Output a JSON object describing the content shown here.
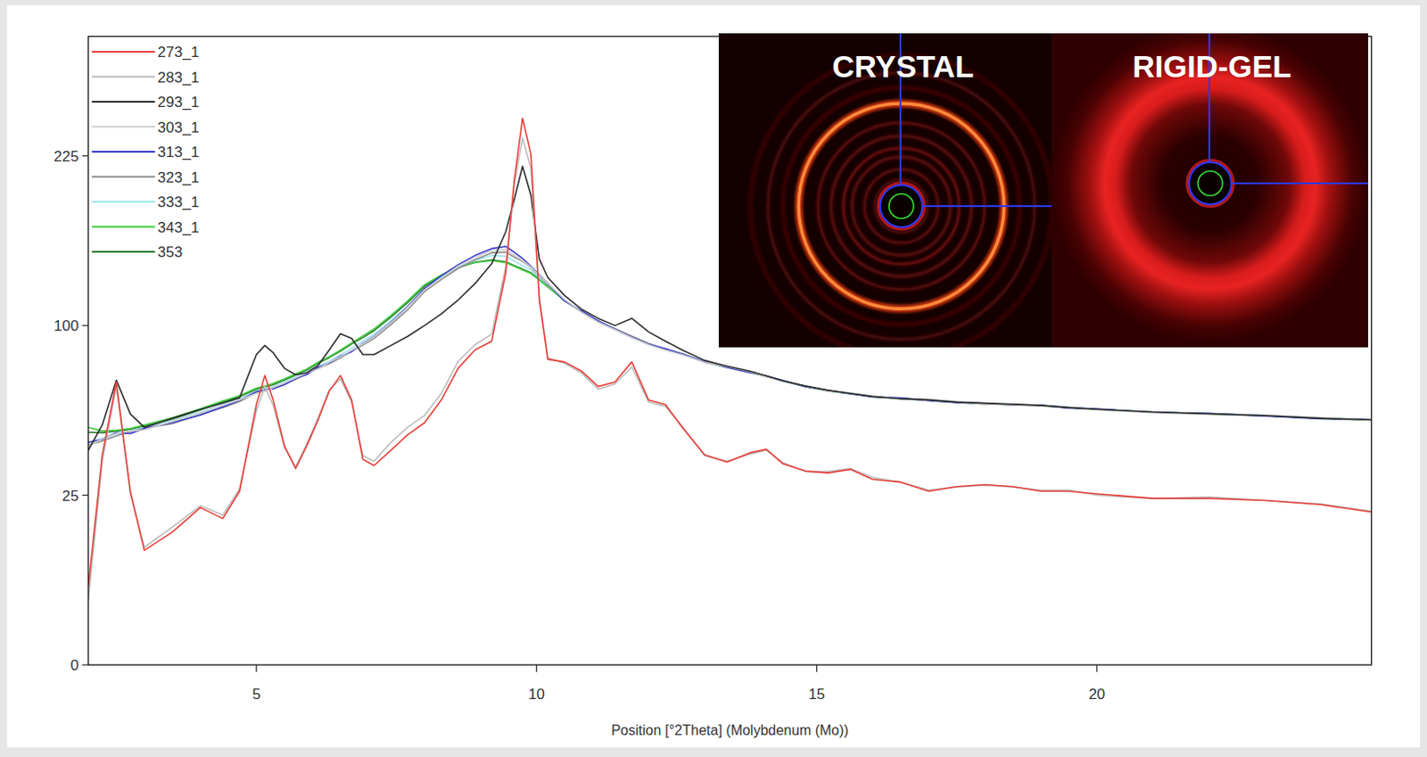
{
  "chart_data": {
    "type": "line",
    "x_label": "Position [°2Theta] (Molybdenum (Mo))",
    "annotations": [
      "CRYSTAL",
      "RIGID-GEL"
    ],
    "legend": "upper left",
    "grid": false,
    "xlim": [
      2.0,
      24.9
    ],
    "xticks": [
      5,
      10,
      15,
      20
    ],
    "ylim": [
      0,
      343
    ],
    "yticks": [
      0,
      25,
      100,
      225
    ],
    "x": [
      2.0,
      2.25,
      2.5,
      2.75,
      3.0,
      3.5,
      4.0,
      4.4,
      4.7,
      5.0,
      5.15,
      5.3,
      5.5,
      5.7,
      5.9,
      6.1,
      6.3,
      6.5,
      6.7,
      6.9,
      7.1,
      7.4,
      7.7,
      8.0,
      8.3,
      8.6,
      8.9,
      9.2,
      9.45,
      9.6,
      9.75,
      9.9,
      10.05,
      10.2,
      10.5,
      10.8,
      11.1,
      11.4,
      11.7,
      12.0,
      12.3,
      12.6,
      13.0,
      13.4,
      13.8,
      14.1,
      14.4,
      14.8,
      15.2,
      15.6,
      16.0,
      16.5,
      17.0,
      17.5,
      18.0,
      18.5,
      19.0,
      19.5,
      20.0,
      21.0,
      22.0,
      23.0,
      24.0,
      24.9
    ],
    "series": [
      {
        "name": "273_1",
        "color": "#e8403a",
        "values": [
          5.3,
          38.3,
          69.5,
          26.2,
          11.4,
          15.3,
          21.5,
          18.6,
          26.2,
          58.8,
          72.7,
          60.9,
          41.7,
          33.5,
          41.7,
          52.0,
          65.1,
          72.7,
          60.9,
          36.7,
          34.5,
          40.0,
          46.0,
          50.9,
          60.9,
          76.4,
          86.1,
          91.0,
          133.5,
          202.7,
          259.6,
          226.2,
          115.6,
          81.1,
          79.7,
          75.0,
          67.3,
          69.5,
          79.7,
          60.9,
          58.8,
          49.0,
          38.3,
          35.7,
          39.0,
          40.4,
          35.1,
          32.6,
          32.0,
          33.2,
          29.9,
          29.0,
          26.2,
          27.6,
          28.2,
          27.6,
          26.2,
          26.2,
          25.4,
          24.1,
          24.1,
          23.5,
          22.3,
          20.3
        ]
      },
      {
        "name": "283_1",
        "color": "#bdbdbd",
        "values": [
          3.6,
          36.0,
          67.3,
          25.5,
          12.0,
          16.5,
          22.0,
          19.5,
          27.0,
          56.0,
          67.3,
          58.5,
          41.0,
          34.0,
          42.5,
          53.0,
          65.5,
          71.0,
          60.0,
          38.0,
          36.0,
          43.0,
          49.0,
          54.0,
          64.0,
          80.0,
          89.0,
          95.0,
          138.0,
          200.0,
          241.0,
          214.0,
          118.0,
          82.0,
          79.0,
          74.0,
          66.0,
          68.5,
          77.0,
          60.0,
          58.0,
          49.5,
          38.0,
          36.0,
          38.5,
          40.0,
          35.5,
          32.5,
          32.5,
          33.5,
          30.5,
          29.0,
          26.5,
          27.5,
          28.0,
          27.5,
          26.5,
          26.5,
          25.0,
          24.0,
          24.5,
          23.5,
          22.5,
          20.5
        ]
      },
      {
        "name": "293_1",
        "color": "#2e2e2e",
        "values": [
          40.0,
          50.0,
          70.4,
          54.7,
          49.0,
          52.8,
          56.7,
          59.5,
          62.0,
          83.6,
          88.6,
          84.6,
          76.4,
          73.1,
          74.1,
          77.8,
          86.1,
          95.2,
          92.6,
          83.6,
          83.6,
          88.6,
          93.7,
          100.0,
          107.0,
          115.6,
          126.2,
          139.8,
          162.9,
          187.7,
          215.9,
          191.4,
          143.0,
          130.4,
          118.5,
          109.9,
          104.3,
          100.0,
          104.3,
          96.3,
          91.0,
          86.1,
          80.5,
          77.5,
          75.0,
          72.5,
          70.0,
          67.5,
          65.5,
          64.0,
          62.5,
          61.5,
          61.0,
          60.0,
          59.5,
          59.0,
          58.5,
          57.5,
          56.8,
          55.5,
          54.8,
          54.0,
          52.8,
          52.2
        ]
      },
      {
        "name": "303_1",
        "color": "#cfcfcf",
        "values": [
          41.5,
          44.5,
          46.5,
          47.5,
          48.0,
          51.5,
          55.0,
          58.5,
          61.0,
          64.0,
          65.0,
          66.8,
          69.0,
          71.5,
          74.0,
          76.0,
          79.5,
          82.5,
          86.0,
          89.5,
          93.5,
          101.5,
          111.0,
          122.0,
          130.0,
          138.0,
          144.0,
          149.0,
          150.0,
          146.0,
          142.0,
          137.5,
          131.5,
          126.5,
          116.0,
          108.0,
          102.0,
          97.5,
          93.0,
          89.0,
          86.0,
          83.5,
          79.5,
          77.2,
          74.8,
          72.0,
          69.8,
          67.5,
          65.0,
          64.2,
          62.8,
          61.5,
          61.0,
          60.2,
          59.0,
          58.6,
          58.2,
          57.6,
          56.5,
          55.2,
          54.5,
          54.2,
          53.0,
          51.8
        ]
      },
      {
        "name": "313_1",
        "color": "#3a3ad0",
        "values": [
          43.0,
          44.2,
          46.8,
          46.5,
          48.5,
          51.0,
          54.2,
          57.8,
          60.8,
          64.8,
          65.8,
          66.2,
          68.2,
          71.2,
          73.2,
          76.8,
          79.2,
          82.8,
          85.2,
          89.8,
          93.8,
          101.8,
          111.5,
          123.0,
          131.5,
          139.0,
          145.5,
          150.5,
          152.0,
          148.0,
          143.5,
          138.0,
          132.0,
          126.5,
          115.0,
          108.8,
          102.8,
          97.8,
          93.2,
          89.2,
          86.8,
          83.8,
          79.9,
          76.8,
          74.2,
          72.5,
          70.2,
          67.2,
          65.4,
          63.8,
          62.4,
          61.9,
          60.7,
          59.8,
          59.4,
          58.6,
          58.5,
          57.3,
          56.9,
          55.3,
          54.9,
          53.8,
          52.6,
          52.2
        ]
      },
      {
        "name": "323_1",
        "color": "#8c8c8c",
        "values": [
          42.0,
          43.5,
          45.5,
          47.2,
          48.6,
          50.5,
          54.5,
          57.5,
          60.2,
          64.5,
          65.2,
          66.6,
          68.4,
          70.8,
          73.8,
          76.2,
          78.8,
          81.8,
          85.8,
          88.8,
          92.5,
          100.5,
          109.5,
          121.0,
          129.0,
          136.5,
          142.5,
          147.5,
          148.0,
          144.5,
          141.5,
          137.2,
          131.2,
          125.8,
          115.4,
          108.2,
          102.2,
          98.2,
          93.8,
          89.8,
          86.2,
          84.2,
          79.4,
          77.4,
          74.4,
          72.2,
          69.9,
          67.6,
          65.3,
          64.1,
          62.7,
          61.6,
          61.1,
          59.9,
          59.1,
          58.9,
          58.3,
          57.4,
          56.6,
          55.6,
          54.6,
          53.9,
          52.9,
          51.9
        ]
      },
      {
        "name": "333_1",
        "color": "#9fe6ee",
        "values": [
          42.8,
          44.6,
          46.2,
          47.6,
          49.0,
          51.8,
          55.5,
          58.8,
          61.5,
          65.0,
          66.0,
          67.2,
          69.5,
          72.0,
          74.5,
          77.5,
          80.0,
          83.5,
          87.0,
          91.0,
          95.0,
          103.0,
          112.0,
          123.0,
          130.5,
          137.5,
          142.0,
          145.5,
          145.0,
          141.5,
          138.5,
          135.5,
          130.0,
          125.5,
          115.8,
          108.6,
          102.6,
          98.1,
          93.6,
          89.6,
          86.6,
          84.1,
          79.8,
          77.1,
          74.6,
          72.4,
          70.1,
          67.5,
          65.3,
          64.1,
          62.7,
          61.8,
          61.0,
          60.1,
          59.3,
          58.9,
          58.5,
          57.6,
          56.8,
          55.6,
          54.8,
          54.1,
          52.9,
          52.1
        ]
      },
      {
        "name": "343_1",
        "color": "#3fcc3f",
        "values": [
          49.0,
          47.5,
          47.8,
          48.5,
          50.0,
          53.0,
          57.0,
          60.5,
          63.0,
          66.5,
          67.5,
          68.8,
          71.0,
          73.5,
          76.0,
          79.5,
          82.5,
          86.0,
          90.0,
          94.0,
          98.0,
          106.0,
          115.0,
          125.5,
          132.0,
          137.5,
          140.5,
          142.0,
          140.5,
          138.0,
          135.5,
          133.0,
          128.5,
          124.0,
          115.2,
          108.4,
          102.4,
          97.9,
          93.4,
          89.4,
          86.4,
          83.9,
          79.6,
          76.9,
          74.4,
          72.1,
          69.9,
          67.3,
          65.1,
          63.9,
          62.5,
          61.6,
          60.8,
          59.9,
          59.1,
          58.7,
          58.3,
          57.4,
          56.6,
          55.4,
          54.6,
          53.9,
          52.7,
          51.9
        ]
      },
      {
        "name": "353",
        "color": "#2a7a2a",
        "values": [
          47.0,
          46.8,
          47.5,
          48.2,
          49.5,
          52.5,
          56.5,
          60.0,
          62.5,
          66.0,
          67.0,
          68.2,
          70.5,
          73.0,
          75.5,
          79.0,
          82.0,
          85.5,
          89.5,
          93.0,
          97.0,
          105.0,
          114.0,
          124.5,
          131.5,
          137.0,
          140.8,
          142.5,
          141.0,
          138.5,
          136.0,
          133.5,
          129.0,
          124.5,
          115.4,
          108.6,
          102.6,
          98.0,
          93.5,
          89.5,
          86.5,
          84.0,
          79.7,
          77.0,
          74.5,
          72.3,
          70.0,
          67.4,
          65.2,
          64.0,
          62.6,
          61.7,
          60.9,
          60.0,
          59.2,
          58.8,
          58.4,
          57.5,
          56.7,
          55.5,
          54.7,
          54.0,
          52.8,
          52.0
        ]
      }
    ]
  }
}
